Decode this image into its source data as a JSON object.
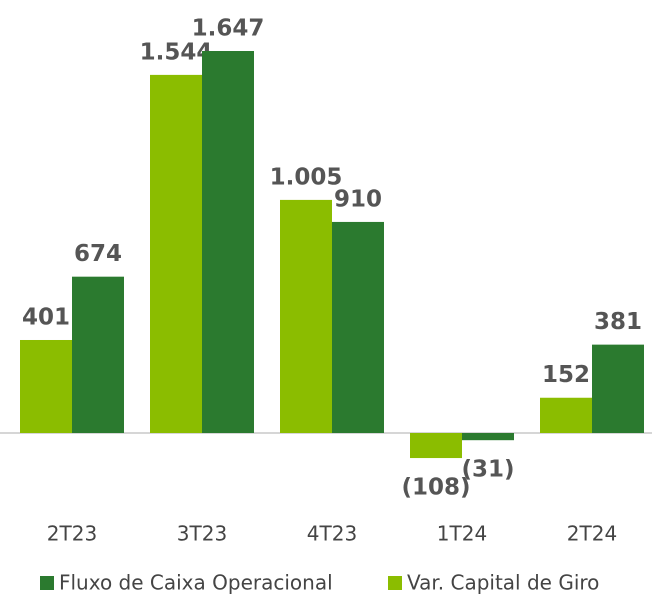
{
  "chart_data": {
    "type": "bar",
    "categories": [
      "2T23",
      "3T23",
      "4T23",
      "1T24",
      "2T24"
    ],
    "series": [
      {
        "name": "Var. Capital de Giro",
        "color": "#8bbd00",
        "values": [
          401,
          1544,
          1005,
          -108,
          152
        ],
        "value_labels": [
          "401",
          "1.544",
          "1.005",
          "(108)",
          "152"
        ]
      },
      {
        "name": "Fluxo de Caixa Operacional",
        "color": "#2b7a2f",
        "values": [
          674,
          1647,
          910,
          -31,
          381
        ],
        "value_labels": [
          "674",
          "1.647",
          "910",
          "(31)",
          "381"
        ]
      }
    ],
    "legend": "bottom"
  }
}
